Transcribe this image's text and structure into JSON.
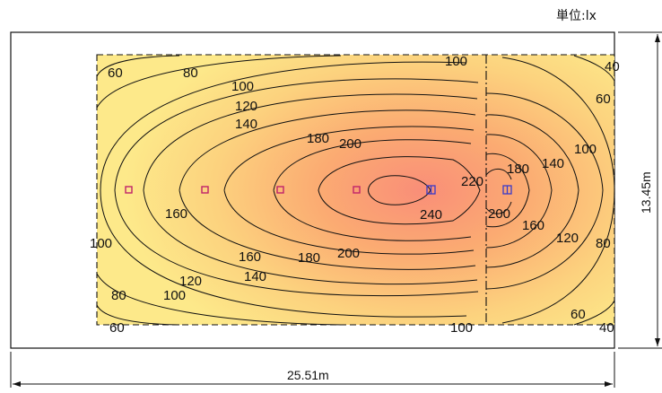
{
  "unit_label": "単位:lx",
  "width_label": "25.51m",
  "height_label": "13.45m",
  "colors": {
    "low": "#fde98a",
    "mid": "#fbb870",
    "high": "#f98e78",
    "contour": "#111111",
    "fixture_a": "#c0226a",
    "fixture_b": "#3a3ac8"
  },
  "contour_labels": [
    "60",
    "80",
    "100",
    "120",
    "140",
    "180",
    "200",
    "100",
    "40",
    "60",
    "100",
    "140",
    "180",
    "220",
    "160",
    "240",
    "200",
    "160",
    "120",
    "80",
    "100",
    "160",
    "180",
    "200",
    "140",
    "120",
    "100",
    "80",
    "60",
    "100",
    "60",
    "40"
  ],
  "fixtures": [
    {
      "type": "downlight",
      "icon": "square-fixture-icon"
    },
    {
      "type": "downlight",
      "icon": "square-fixture-icon"
    },
    {
      "type": "downlight",
      "icon": "square-fixture-icon"
    },
    {
      "type": "downlight",
      "icon": "square-fixture-icon"
    },
    {
      "type": "spot",
      "icon": "split-fixture-icon"
    },
    {
      "type": "spot",
      "icon": "split-fixture-icon"
    }
  ]
}
